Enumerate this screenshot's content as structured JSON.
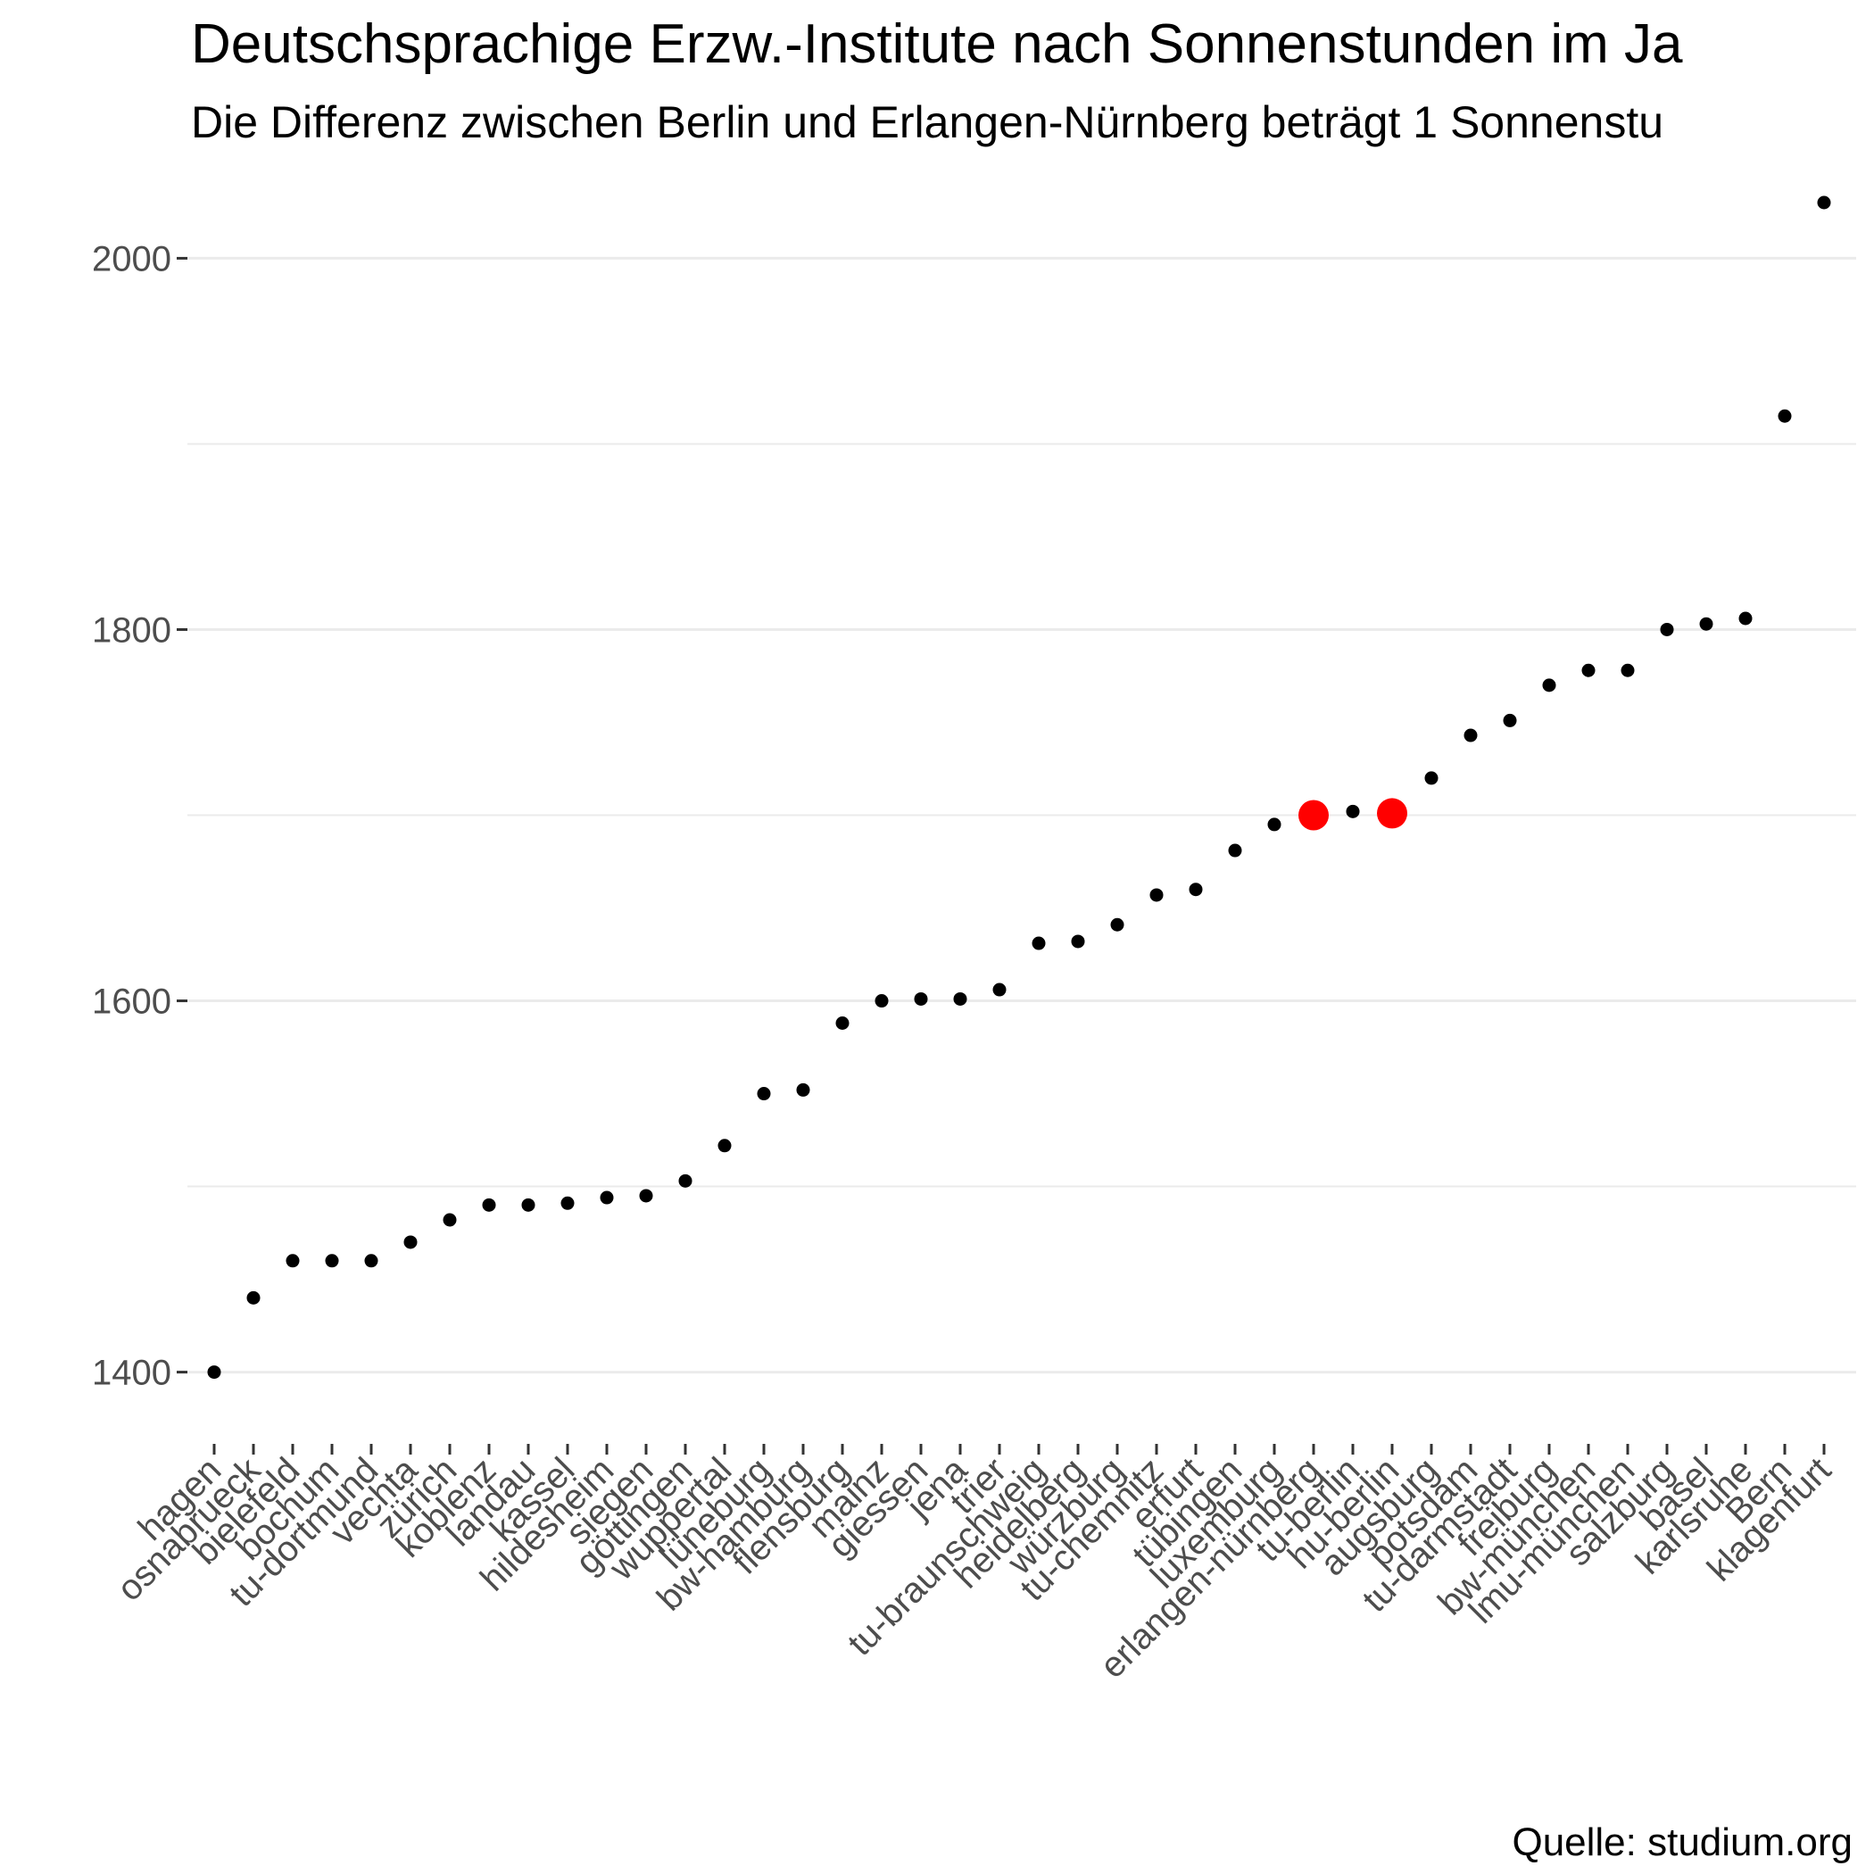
{
  "chart_data": {
    "type": "scatter",
    "title": "Deutschsprachige Erzw.-Institute nach Sonnenstunden im Ja",
    "subtitle": "Die Differenz zwischen Berlin und Erlangen-Nürnberg beträgt 1 Sonnenstu",
    "caption": "Quelle: studium.org",
    "xlabel": "",
    "ylabel": "",
    "ylim": [
      1370,
      2055
    ],
    "yticks": [
      1400,
      1600,
      1800,
      2000
    ],
    "grid": true,
    "categories": [
      "hagen",
      "osnabrueck",
      "bielefeld",
      "bochum",
      "tu-dortmund",
      "vechta",
      "zürich",
      "koblenz",
      "landau",
      "kassel",
      "hildesheim",
      "siegen",
      "göttingen",
      "wuppertal",
      "lüneburg",
      "bw-hamburg",
      "flensburg",
      "mainz",
      "giessen",
      "jena",
      "trier",
      "tu-braunschweig",
      "heidelberg",
      "würzburg",
      "tu-chemnitz",
      "erfurt",
      "tübingen",
      "luxemburg",
      "erlangen-nürnberg",
      "tu-berlin",
      "hu-berlin",
      "augsburg",
      "potsdam",
      "tu-darmstadt",
      "freiburg",
      "bw-münchen",
      "lmu-münchen",
      "salzburg",
      "basel",
      "karlsruhe",
      "Bern",
      "klagenfurt"
    ],
    "values": [
      1400,
      1440,
      1460,
      1460,
      1460,
      1470,
      1482,
      1490,
      1490,
      1491,
      1494,
      1495,
      1503,
      1522,
      1550,
      1552,
      1588,
      1600,
      1601,
      1601,
      1606,
      1631,
      1632,
      1641,
      1657,
      1660,
      1681,
      1695,
      1700,
      1702,
      1701,
      1720,
      1743,
      1751,
      1770,
      1778,
      1778,
      1800,
      1803,
      1806,
      1915,
      2030
    ],
    "highlighted": [
      "erlangen-nürnberg",
      "hu-berlin"
    ],
    "point_color": "#000000",
    "highlight_color": "#ff0000",
    "grid_color": "#ebebeb"
  }
}
